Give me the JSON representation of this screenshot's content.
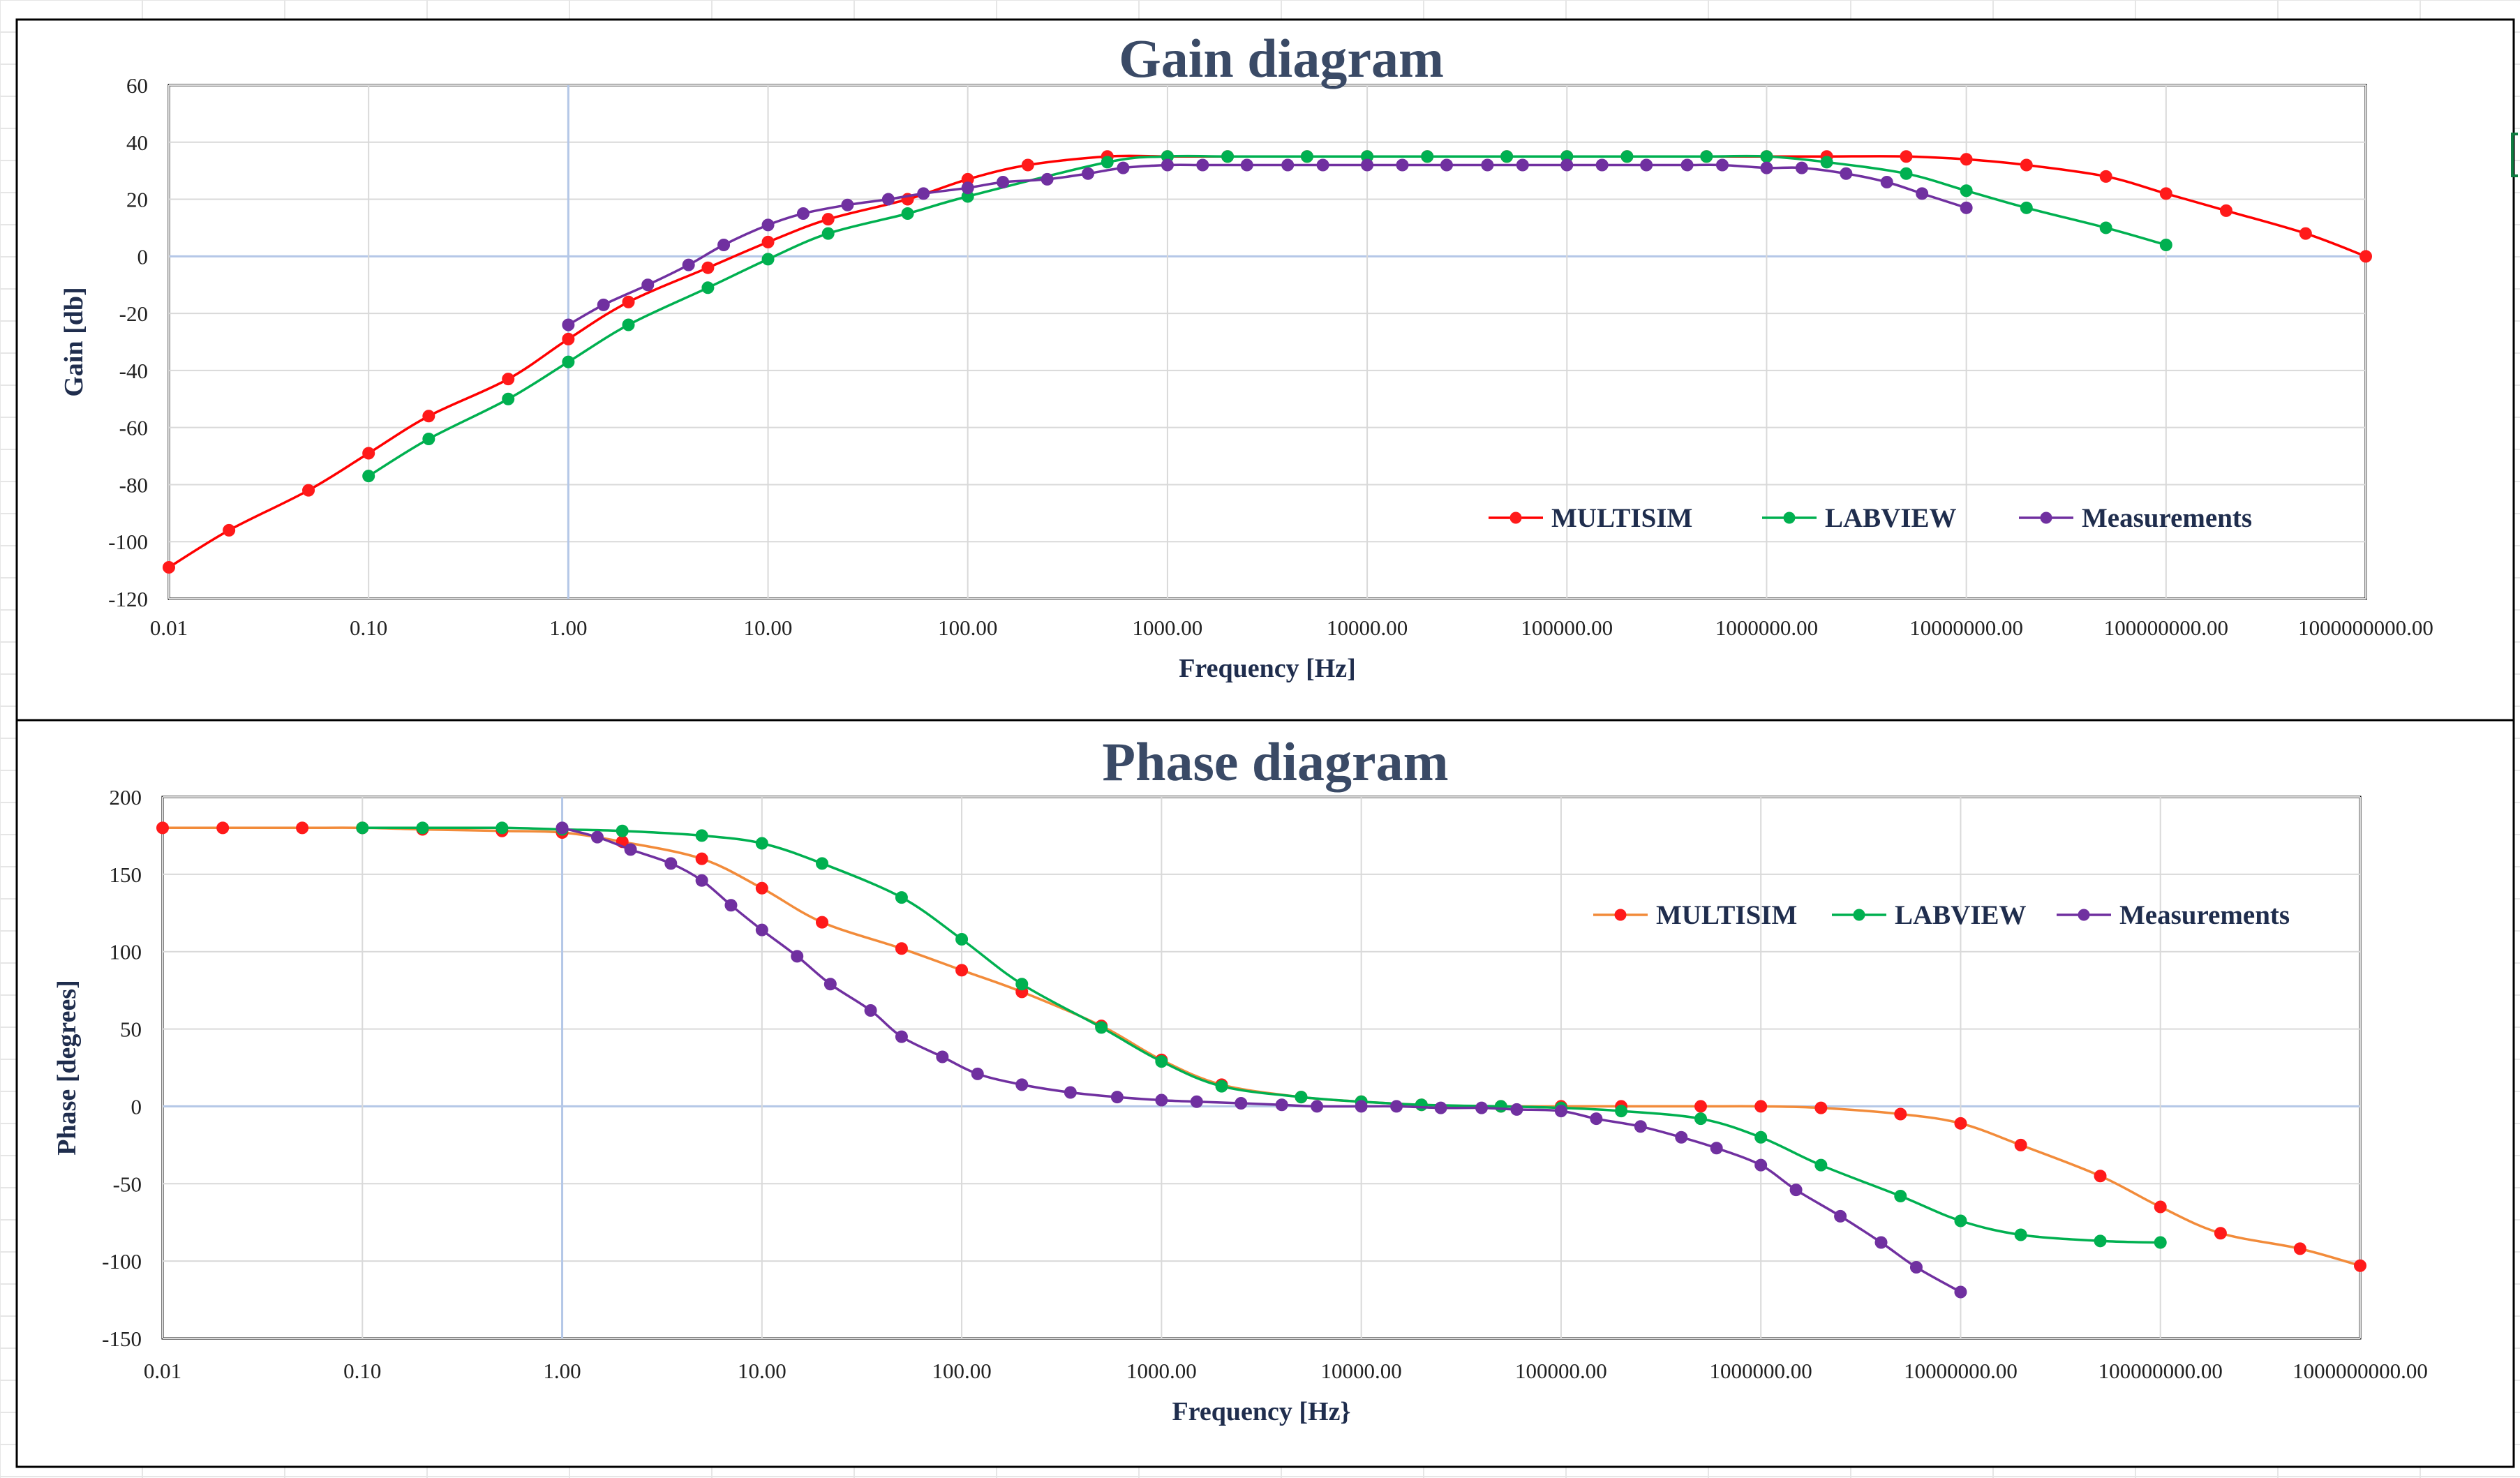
{
  "colors": {
    "multisim_gain": "#ff0000",
    "multisim_phase": "#f28b3a",
    "marker_red": "#ff1a1a",
    "labview": "#00b050",
    "measurements": "#7030a0",
    "title": "#3a4a66",
    "axis_text": "#1f2d4d",
    "grid": "#d9d9d9",
    "zero_line": "#b4c7e7"
  },
  "chart_data": [
    {
      "type": "line",
      "title": "Gain diagram",
      "xlabel": "Frequency  [Hz]",
      "ylabel": "Gain [db]",
      "x_scale": "log",
      "xlim": [
        0.01,
        1000000000
      ],
      "ylim": [
        -120,
        60
      ],
      "y_ticks": [
        60,
        40,
        20,
        0,
        -20,
        -40,
        -60,
        -80,
        -100,
        -120
      ],
      "x_tick_labels": [
        "0.01",
        "0.10",
        "1.00",
        "10.00",
        "100.00",
        "1000.00",
        "10000.00",
        "100000.00",
        "1000000.00",
        "10000000.00",
        "100000000.00",
        "1000000000.00"
      ],
      "grid": true,
      "legend_position": "bottom-right",
      "series": [
        {
          "name": "MULTISIM",
          "x": [
            0.01,
            0.02,
            0.05,
            0.1,
            0.2,
            0.5,
            1,
            2,
            5,
            10,
            20,
            50,
            100,
            200,
            500,
            1000,
            2000,
            5000,
            10000,
            20000,
            50000,
            100000,
            200000,
            500000,
            1000000,
            2000000,
            5000000,
            10000000,
            20000000,
            50000000,
            100000000,
            200000000,
            500000000,
            1000000000
          ],
          "y": [
            -109,
            -96,
            -82,
            -69,
            -56,
            -43,
            -29,
            -16,
            -4,
            5,
            13,
            20,
            27,
            32,
            35,
            35,
            35,
            35,
            35,
            35,
            35,
            35,
            35,
            35,
            35,
            35,
            35,
            34,
            32,
            28,
            22,
            16,
            8,
            0
          ]
        },
        {
          "name": "LABVIEW",
          "x": [
            0.1,
            0.2,
            0.5,
            1,
            2,
            5,
            10,
            20,
            50,
            100,
            500,
            1000,
            2000,
            5000,
            10000,
            20000,
            50000,
            100000,
            200000,
            500000,
            1000000,
            2000000,
            5000000,
            10000000,
            20000000,
            50000000,
            100000000
          ],
          "y": [
            -77,
            -64,
            -50,
            -37,
            -24,
            -11,
            -1,
            8,
            15,
            21,
            33,
            35,
            35,
            35,
            35,
            35,
            35,
            35,
            35,
            35,
            35,
            33,
            29,
            23,
            17,
            10,
            4
          ]
        },
        {
          "name": "Measurements",
          "x": [
            1,
            1.5,
            2.5,
            4,
            6,
            10,
            15,
            25,
            40,
            60,
            100,
            150,
            250,
            400,
            600,
            1000,
            1500,
            2500,
            4000,
            6000,
            10000,
            15000,
            25000,
            40000,
            60000,
            100000,
            150000,
            250000,
            400000,
            600000,
            1000000,
            1500000,
            2500000,
            4000000,
            6000000,
            10000000
          ],
          "y": [
            -24,
            -17,
            -10,
            -3,
            4,
            11,
            15,
            18,
            20,
            22,
            24,
            26,
            27,
            29,
            31,
            32,
            32,
            32,
            32,
            32,
            32,
            32,
            32,
            32,
            32,
            32,
            32,
            32,
            32,
            32,
            31,
            31,
            29,
            26,
            22,
            17
          ]
        }
      ]
    },
    {
      "type": "line",
      "title": "Phase diagram",
      "xlabel": "Frequency  [Hz}",
      "ylabel": "Phase [degrees]",
      "x_scale": "log",
      "xlim": [
        0.01,
        1000000000
      ],
      "ylim": [
        -150,
        200
      ],
      "y_ticks": [
        200,
        150,
        100,
        50,
        0,
        -50,
        -100,
        -150
      ],
      "x_tick_labels": [
        "0.01",
        "0.10",
        "1.00",
        "10.00",
        "100.00",
        "1000.00",
        "10000.00",
        "100000.00",
        "1000000.00",
        "10000000.00",
        "100000000.00",
        "1000000000.00"
      ],
      "grid": true,
      "legend_position": "top-right",
      "series": [
        {
          "name": "MULTISIM",
          "x": [
            0.01,
            0.02,
            0.05,
            0.1,
            0.2,
            0.5,
            1,
            2,
            5,
            10,
            20,
            50,
            100,
            200,
            500,
            1000,
            2000,
            5000,
            10000,
            20000,
            50000,
            100000,
            200000,
            500000,
            1000000,
            2000000,
            5000000,
            10000000,
            20000000,
            50000000,
            100000000,
            200000000,
            500000000,
            1000000000
          ],
          "y": [
            180,
            180,
            180,
            180,
            179,
            178,
            177,
            171,
            160,
            141,
            119,
            102,
            88,
            74,
            52,
            30,
            14,
            6,
            3,
            1,
            0,
            0,
            0,
            0,
            0,
            -1,
            -5,
            -11,
            -25,
            -45,
            -65,
            -82,
            -92,
            -103
          ]
        },
        {
          "name": "LABVIEW",
          "x": [
            0.1,
            0.2,
            0.5,
            1,
            2,
            5,
            10,
            20,
            50,
            100,
            200,
            500,
            1000,
            2000,
            5000,
            10000,
            20000,
            50000,
            100000,
            200000,
            500000,
            1000000,
            2000000,
            5000000,
            10000000,
            20000000,
            50000000,
            100000000
          ],
          "y": [
            180,
            180,
            180,
            179,
            178,
            175,
            170,
            157,
            135,
            108,
            79,
            51,
            29,
            13,
            6,
            3,
            1,
            0,
            -1,
            -3,
            -8,
            -20,
            -38,
            -58,
            -74,
            -83,
            -87,
            -88
          ]
        },
        {
          "name": "Measurements",
          "x": [
            1,
            1.5,
            2.2,
            3.5,
            5,
            7,
            10,
            15,
            22,
            35,
            50,
            80,
            120,
            200,
            350,
            600,
            1000,
            1500,
            2500,
            4000,
            6000,
            10000,
            15000,
            25000,
            40000,
            60000,
            100000,
            150000,
            250000,
            400000,
            600000,
            1000000,
            1500000,
            2500000,
            4000000,
            6000000,
            10000000
          ],
          "y": [
            180,
            174,
            166,
            157,
            146,
            130,
            114,
            97,
            79,
            62,
            45,
            32,
            21,
            14,
            9,
            6,
            4,
            3,
            2,
            1,
            0,
            0,
            0,
            -1,
            -1,
            -2,
            -3,
            -8,
            -13,
            -20,
            -27,
            -38,
            -54,
            -71,
            -88,
            -104,
            -120
          ]
        }
      ]
    }
  ]
}
